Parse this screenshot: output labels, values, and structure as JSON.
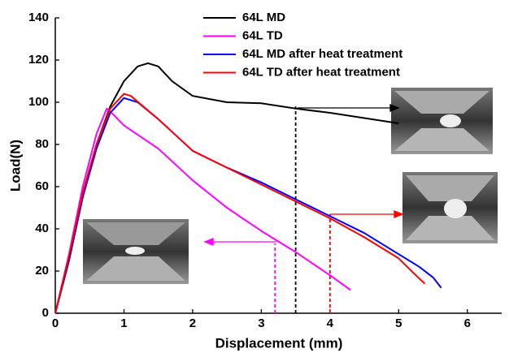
{
  "chart_data": {
    "type": "line",
    "x_label": "Displacement (mm)",
    "y_label": "Load(N)",
    "xlim": [
      0,
      6.5
    ],
    "ylim": [
      0,
      140
    ],
    "xticks": [
      0,
      1,
      2,
      3,
      4,
      5,
      6
    ],
    "yticks": [
      0,
      20,
      40,
      60,
      80,
      100,
      120,
      140
    ],
    "legend": "top",
    "series": [
      {
        "name": "64L MD",
        "color": "#000000",
        "x": [
          0,
          0.2,
          0.4,
          0.6,
          0.8,
          1.0,
          1.2,
          1.35,
          1.5,
          1.7,
          2.0,
          2.5,
          3.0,
          3.5,
          4.0,
          4.5,
          5.0
        ],
        "values": [
          0,
          25,
          55,
          80,
          98,
          110,
          117,
          118.5,
          117,
          110,
          103,
          100,
          99.5,
          97,
          95,
          92.5,
          90
        ]
      },
      {
        "name": "64L TD",
        "color": "#ff00ff",
        "x": [
          0,
          0.2,
          0.4,
          0.6,
          0.75,
          0.85,
          1.0,
          1.5,
          2.0,
          2.5,
          3.0,
          3.5,
          4.0,
          4.3
        ],
        "values": [
          0,
          28,
          60,
          85,
          97,
          94,
          89,
          78,
          63,
          50,
          39,
          29,
          18,
          11
        ]
      },
      {
        "name": "64L MD after heat treatment",
        "color": "#0000ff",
        "x": [
          0,
          0.2,
          0.4,
          0.6,
          0.8,
          1.0,
          1.2,
          1.5,
          2.0,
          2.5,
          3.0,
          3.5,
          4.0,
          4.5,
          5.0,
          5.3,
          5.5,
          5.62
        ],
        "values": [
          0,
          26,
          55,
          78,
          95,
          102,
          100,
          92,
          77,
          69,
          62,
          54,
          46,
          38,
          28,
          22,
          17,
          12
        ]
      },
      {
        "name": "64L TD after heat treatment",
        "color": "#ff0000",
        "x": [
          0,
          0.2,
          0.4,
          0.6,
          0.8,
          1.0,
          1.1,
          1.5,
          2.0,
          2.5,
          3.0,
          3.5,
          4.0,
          4.5,
          5.0,
          5.25,
          5.38
        ],
        "values": [
          0,
          27,
          57,
          80,
          97,
          104,
          103,
          92,
          77,
          69,
          61,
          53,
          45,
          36,
          26,
          18,
          14
        ]
      }
    ],
    "reference_lines": [
      {
        "x": 3.2,
        "y": 33,
        "color": "#ff00ff"
      },
      {
        "x": 3.5,
        "y": 98,
        "color": "#000000"
      },
      {
        "x": 4.0,
        "y": 47,
        "color": "#ff0000"
      }
    ]
  }
}
